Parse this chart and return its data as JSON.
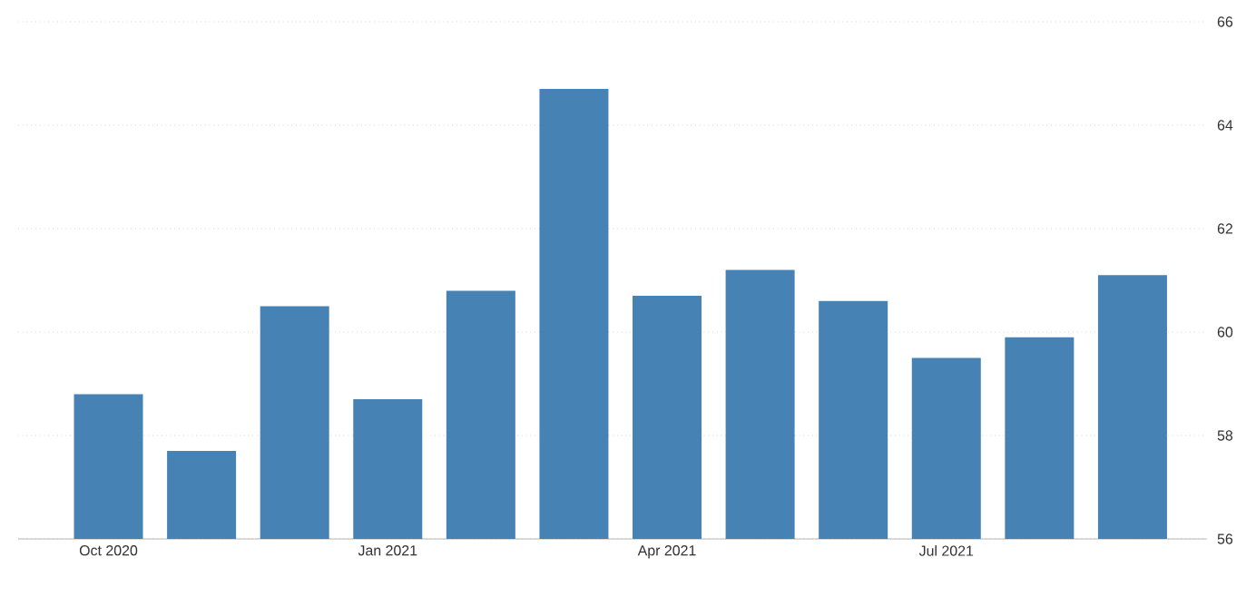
{
  "chart_data": {
    "type": "bar",
    "categories": [
      "Oct 2020",
      null,
      null,
      "Jan 2021",
      null,
      null,
      "Apr 2021",
      null,
      null,
      "Jul 2021",
      null,
      null
    ],
    "values": [
      58.8,
      57.7,
      60.5,
      58.7,
      60.8,
      64.7,
      60.7,
      61.2,
      60.6,
      59.5,
      59.9,
      61.1
    ],
    "color": "#4682b4",
    "ylim": [
      56,
      66
    ],
    "yticks": [
      56,
      58,
      60,
      62,
      64,
      66
    ],
    "grid": "y"
  }
}
